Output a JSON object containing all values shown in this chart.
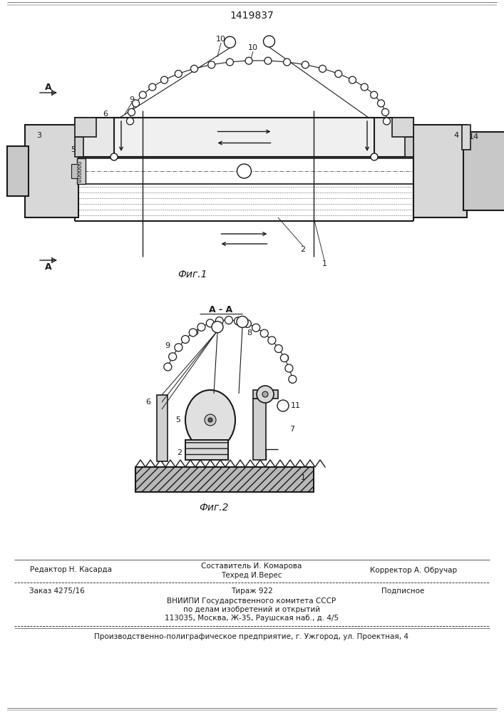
{
  "patent_number": "1419837",
  "fig1_label": "Фиг.1",
  "fig2_label": "Фиг.2",
  "section_label": "А - А",
  "section_mark": "А",
  "footer": {
    "editor": "Редактор Н. Касарда",
    "composer": "Составитель И. Комарова",
    "techred": "Техред И.Верес",
    "corrector": "Корректор А. Обручар",
    "order": "Заказ 4275/16",
    "tirazh": "Тираж 922",
    "podpisnoe": "Подписное",
    "vnipi_line1": "ВНИИПИ Государственного комитета СССР",
    "vnipi_line2": "по делам изобретений и открытий",
    "vnipi_line3": "113035, Москва, Ж-35, Раушская наб., д. 4/5",
    "production": "Производственно-полиграфическое предприятие, г. Ужгород, ул. Проектная, 4"
  }
}
